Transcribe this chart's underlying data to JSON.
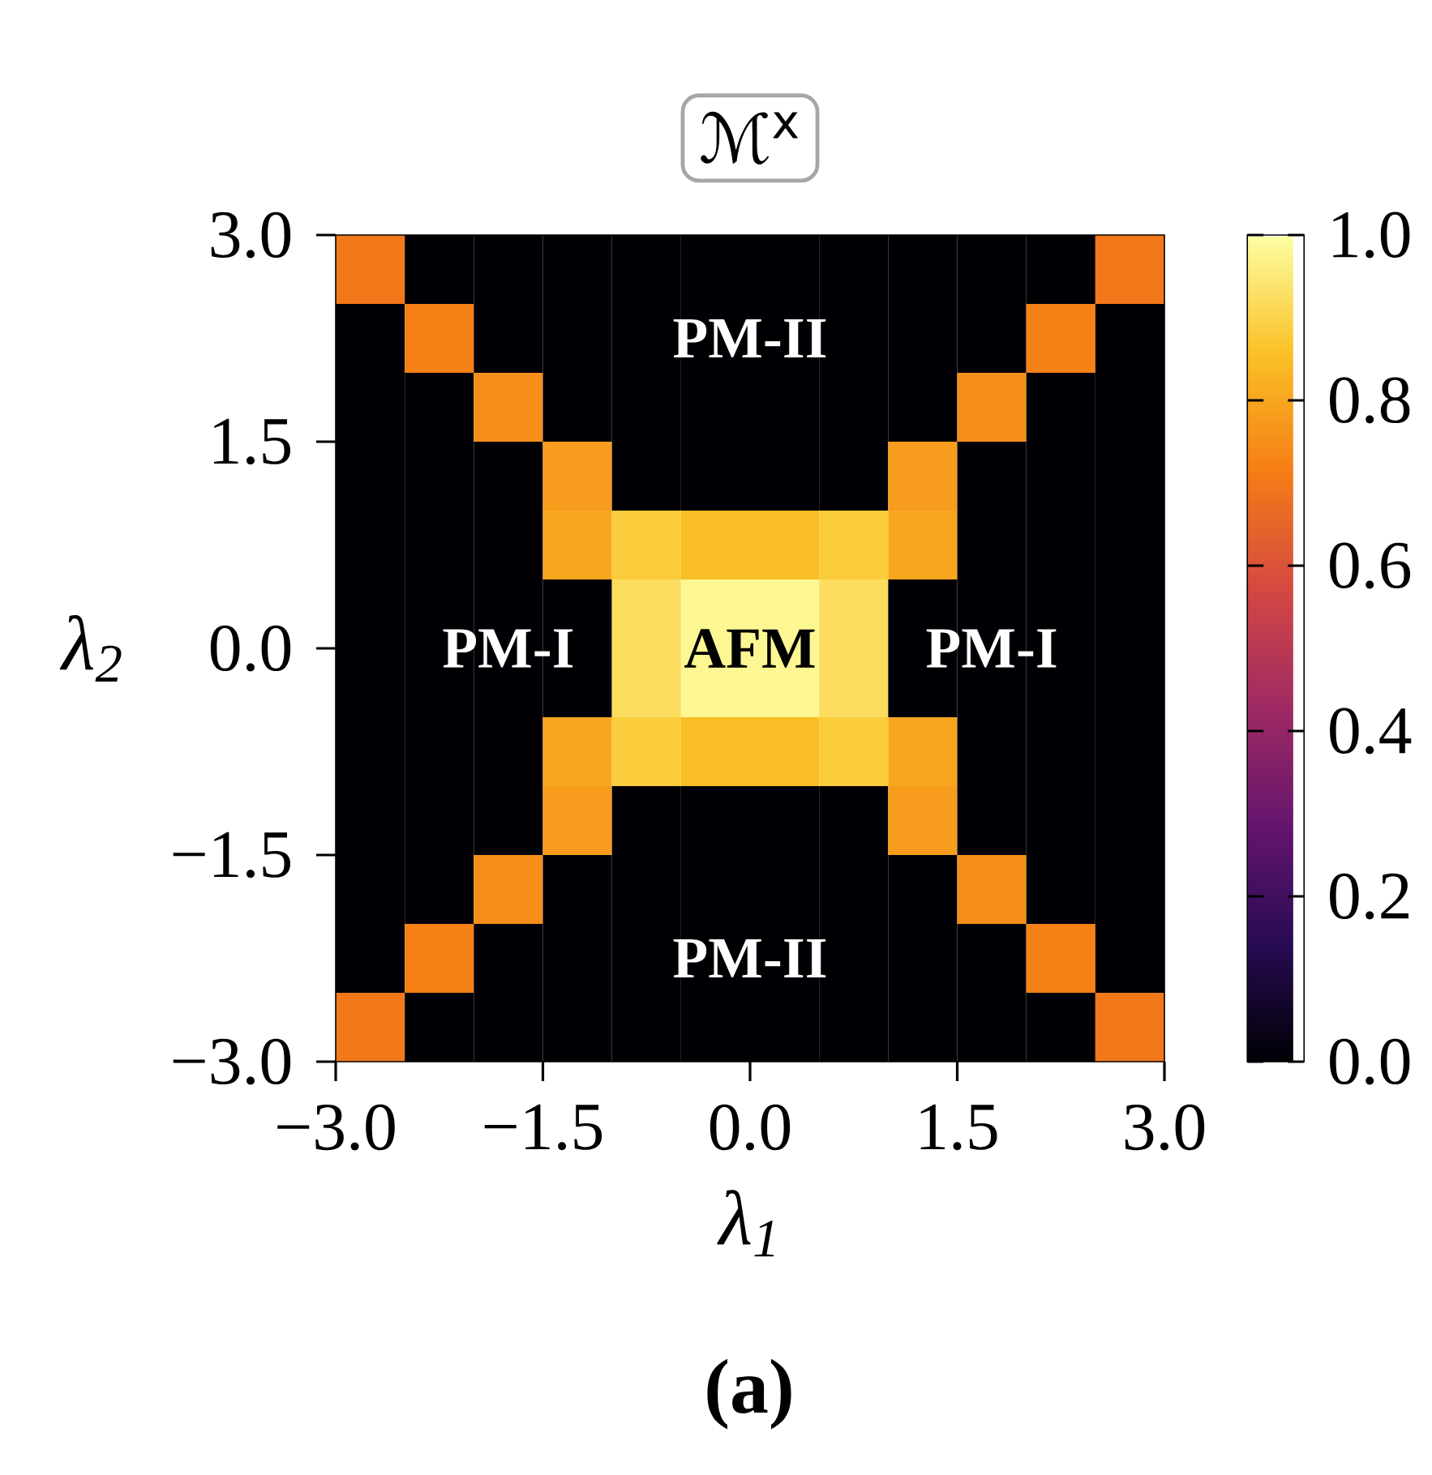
{
  "chart_data": {
    "type": "heatmap",
    "title": "ℳ$^{x}$",
    "xlabel": "λ$_{1}$",
    "ylabel": "λ$_{2}$",
    "x": [
      -2.75,
      -2.25,
      -1.75,
      -1.25,
      -0.75,
      -0.25,
      0.25,
      0.75,
      1.25,
      1.75,
      2.25,
      2.75
    ],
    "y": [
      2.75,
      2.25,
      1.75,
      1.25,
      0.75,
      0.25,
      -0.25,
      -0.75,
      -1.25,
      -1.75,
      -2.25,
      -2.75
    ],
    "xlim": [
      -3,
      3
    ],
    "ylim": [
      -3,
      3
    ],
    "xticks": [
      {
        "value": -3,
        "label": "−3.0"
      },
      {
        "value": -1.5,
        "label": "−1.5"
      },
      {
        "value": 0,
        "label": "0.0"
      },
      {
        "value": 1.5,
        "label": "1.5"
      },
      {
        "value": 3,
        "label": "3.0"
      }
    ],
    "yticks": [
      {
        "value": -3,
        "label": "−3.0"
      },
      {
        "value": -1.5,
        "label": "−1.5"
      },
      {
        "value": 0,
        "label": "0.0"
      },
      {
        "value": 1.5,
        "label": "1.5"
      },
      {
        "value": 3,
        "label": "3.0"
      }
    ],
    "clim": [
      0,
      1
    ],
    "cticks": [
      {
        "value": 0,
        "label": "0.0"
      },
      {
        "value": 0.2,
        "label": "0.2"
      },
      {
        "value": 0.4,
        "label": "0.4"
      },
      {
        "value": 0.6,
        "label": "0.6"
      },
      {
        "value": 0.8,
        "label": "0.8"
      },
      {
        "value": 1,
        "label": "1.0"
      }
    ],
    "cells": [
      [
        0.7,
        0,
        0,
        0,
        0,
        0,
        0,
        0,
        0,
        0,
        0,
        0.7
      ],
      [
        0,
        0.72,
        0,
        0,
        0,
        0,
        0,
        0,
        0,
        0,
        0.72,
        0
      ],
      [
        0,
        0,
        0.75,
        0,
        0,
        0,
        0,
        0,
        0,
        0.75,
        0,
        0
      ],
      [
        0,
        0,
        0,
        0.78,
        0,
        0,
        0,
        0,
        0.78,
        0,
        0,
        0
      ],
      [
        0,
        0,
        0,
        0.8,
        0.88,
        0.85,
        0.85,
        0.88,
        0.8,
        0,
        0,
        0
      ],
      [
        0,
        0,
        0,
        0,
        0.92,
        0.98,
        0.98,
        0.92,
        0,
        0,
        0,
        0
      ],
      [
        0,
        0,
        0,
        0,
        0.92,
        0.98,
        0.98,
        0.92,
        0,
        0,
        0,
        0
      ],
      [
        0,
        0,
        0,
        0.8,
        0.88,
        0.85,
        0.85,
        0.88,
        0.8,
        0,
        0,
        0
      ],
      [
        0,
        0,
        0,
        0.78,
        0,
        0,
        0,
        0,
        0.78,
        0,
        0,
        0
      ],
      [
        0,
        0,
        0.75,
        0,
        0,
        0,
        0,
        0,
        0,
        0.75,
        0,
        0
      ],
      [
        0,
        0.72,
        0,
        0,
        0,
        0,
        0,
        0,
        0,
        0,
        0.72,
        0
      ],
      [
        0.7,
        0,
        0,
        0,
        0,
        0,
        0,
        0,
        0,
        0,
        0,
        0.7
      ]
    ],
    "annotations": [
      "PM-II",
      "PM-I",
      "AFM",
      "PM-I",
      "PM-II",
      "(a)"
    ]
  }
}
